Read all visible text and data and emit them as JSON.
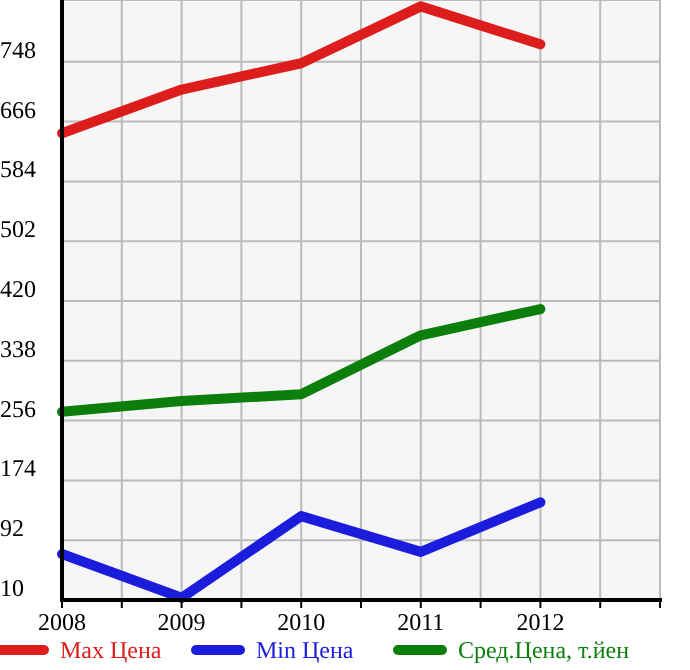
{
  "chart_data": {
    "type": "line",
    "x": [
      2008,
      2009,
      2010,
      2011,
      2012
    ],
    "xlim": [
      2008,
      2013
    ],
    "xticks": [
      2008,
      {
        "value": 2008.5,
        "label": null
      },
      2009,
      {
        "value": 2009.5,
        "label": null
      },
      2010,
      {
        "value": 2010.5,
        "label": null
      },
      2011,
      {
        "value": 2011.5,
        "label": null
      },
      2012,
      {
        "value": 2012.5,
        "label": null
      },
      {
        "value": 2013,
        "label": null
      }
    ],
    "ylim": [
      10,
      830
    ],
    "yticks": [
      10,
      92,
      174,
      256,
      338,
      420,
      502,
      584,
      666,
      748
    ],
    "grid": true,
    "legend": "bottom",
    "marker": "none",
    "line_style": "solid",
    "series": [
      {
        "name": "Max Цена",
        "color": "#dd1c1c",
        "values": [
          650,
          710,
          746,
          824,
          772
        ]
      },
      {
        "name": "Min Цена",
        "color": "#1c1cdd",
        "values": [
          73,
          13,
          125,
          76,
          144
        ]
      },
      {
        "name": "Сред.Цена, т.йен",
        "color": "#0c7e0c",
        "values": [
          268,
          283,
          292,
          373,
          409
        ]
      }
    ]
  }
}
